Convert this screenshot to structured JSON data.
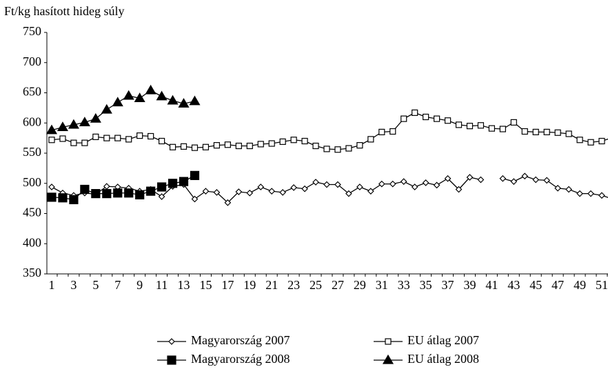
{
  "chart_data": {
    "type": "line",
    "y_axis_label": "Ft/kg hasított hideg súly",
    "categories": [
      1,
      null,
      3,
      null,
      5,
      null,
      7,
      null,
      9,
      null,
      11,
      null,
      13,
      null,
      15,
      null,
      17,
      null,
      19,
      null,
      21,
      null,
      23,
      null,
      25,
      null,
      27,
      null,
      29,
      null,
      31,
      null,
      33,
      null,
      35,
      null,
      37,
      null,
      39,
      null,
      41,
      null,
      43,
      null,
      45,
      null,
      47,
      null,
      49,
      null,
      51,
      null
    ],
    "ylim": [
      350,
      750
    ],
    "yticks": [
      350,
      400,
      450,
      500,
      550,
      600,
      650,
      700,
      750
    ],
    "grid": false,
    "legend": "bottom",
    "series": [
      {
        "name": "Magyarország 2007",
        "color": "#000000",
        "marker": "diamond-open",
        "values": [
          494,
          484,
          480,
          484,
          482,
          495,
          494,
          492,
          487,
          490,
          478,
          495,
          498,
          474,
          487,
          485,
          468,
          486,
          484,
          494,
          487,
          485,
          493,
          491,
          502,
          498,
          498,
          483,
          494,
          487,
          499,
          499,
          503,
          494,
          501,
          497,
          508,
          490,
          510,
          506,
          null,
          508,
          503,
          512,
          506,
          505,
          492,
          490,
          483,
          483,
          480,
          474
        ]
      },
      {
        "name": "EU átlag 2007",
        "color": "#000000",
        "marker": "square-open",
        "values": [
          572,
          574,
          567,
          567,
          577,
          575,
          575,
          573,
          579,
          578,
          570,
          560,
          561,
          559,
          560,
          563,
          564,
          562,
          562,
          565,
          566,
          569,
          572,
          570,
          562,
          557,
          556,
          558,
          563,
          573,
          585,
          586,
          607,
          617,
          610,
          607,
          604,
          597,
          595,
          596,
          591,
          590,
          601,
          586,
          585,
          585,
          584,
          582,
          572,
          568,
          570,
          576
        ]
      },
      {
        "name": "Magyarország 2008",
        "color": "#000000",
        "marker": "square-filled",
        "values": [
          477,
          476,
          473,
          490,
          483,
          483,
          484,
          484,
          481,
          487,
          494,
          500,
          503,
          513,
          null,
          null,
          null,
          null,
          null,
          null,
          null,
          null,
          null,
          null,
          null,
          null,
          null,
          null,
          null,
          null,
          null,
          null,
          null,
          null,
          null,
          null,
          null,
          null,
          null,
          null,
          null,
          null,
          null,
          null,
          null,
          null,
          null,
          null,
          null,
          null,
          null,
          null
        ]
      },
      {
        "name": "EU átlag 2008",
        "color": "#000000",
        "marker": "triangle-filled",
        "values": [
          588,
          593,
          597,
          601,
          607,
          622,
          634,
          645,
          641,
          654,
          644,
          637,
          632,
          636,
          null,
          null,
          null,
          null,
          null,
          null,
          null,
          null,
          null,
          null,
          null,
          null,
          null,
          null,
          null,
          null,
          null,
          null,
          null,
          null,
          null,
          null,
          null,
          null,
          null,
          null,
          null,
          null,
          null,
          null,
          null,
          null,
          null,
          null,
          null,
          null,
          null,
          null
        ]
      }
    ]
  }
}
